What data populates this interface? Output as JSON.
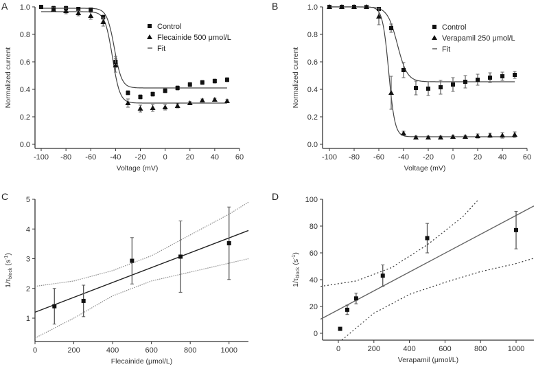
{
  "chart_data": [
    {
      "panel": "A",
      "type": "scatter",
      "xlabel": "Voltage (mV)",
      "ylabel": "Normalized current",
      "xlim": [
        -100,
        60
      ],
      "ylim": [
        0.0,
        1.0
      ],
      "xticks": [
        -100,
        -80,
        -60,
        -40,
        -20,
        0,
        20,
        40,
        60
      ],
      "yticks": [
        0.0,
        0.2,
        0.4,
        0.6,
        0.8,
        1.0
      ],
      "ytick_decimals": 1,
      "legend": {
        "placement": "top-right",
        "entries": [
          {
            "label": "Control",
            "marker": "square"
          },
          {
            "label": "Flecainide 500 μmol/L",
            "marker": "triangle"
          },
          {
            "label": "Fit",
            "marker": "line"
          }
        ]
      },
      "series": [
        {
          "name": "Control",
          "marker": "square",
          "x": [
            -100,
            -90,
            -80,
            -70,
            -60,
            -50,
            -40,
            -30,
            -20,
            -10,
            0,
            10,
            20,
            30,
            40,
            50
          ],
          "y": [
            1.0,
            0.99,
            0.99,
            0.985,
            0.98,
            0.925,
            0.6,
            0.375,
            0.345,
            0.365,
            0.39,
            0.41,
            0.435,
            0.45,
            0.46,
            0.47
          ],
          "err": [
            0.005,
            0.015,
            0.015,
            0.01,
            0.01,
            0.015,
            0.04,
            0.015,
            0.015,
            0.015,
            0.015,
            0.015,
            0.015,
            0.015,
            0.015,
            0.015
          ],
          "fit": {
            "model": "boltzmann",
            "top": 0.99,
            "bottom": 0.41,
            "v_half": -41,
            "k": 3
          }
        },
        {
          "name": "Flecainide 500 μmol/L",
          "marker": "triangle",
          "x": [
            -90,
            -80,
            -70,
            -60,
            -50,
            -40,
            -30,
            -20,
            -10,
            0,
            10,
            20,
            30,
            40,
            50
          ],
          "y": [
            0.98,
            0.97,
            0.955,
            0.935,
            0.89,
            0.575,
            0.3,
            0.26,
            0.265,
            0.27,
            0.28,
            0.3,
            0.32,
            0.325,
            0.315
          ],
          "err": [
            0.015,
            0.02,
            0.02,
            0.025,
            0.03,
            0.05,
            0.03,
            0.025,
            0.025,
            0.02,
            0.015,
            0.01,
            0.01,
            0.01,
            0.01
          ],
          "fit": {
            "model": "boltzmann",
            "top": 0.965,
            "bottom": 0.3,
            "v_half": -42.5,
            "k": 3
          }
        }
      ]
    },
    {
      "panel": "B",
      "type": "scatter",
      "xlabel": "Voltage (mV)",
      "ylabel": "Normalized current",
      "xlim": [
        -100,
        60
      ],
      "ylim": [
        0.0,
        1.0
      ],
      "xticks": [
        -100,
        -80,
        -60,
        -40,
        -20,
        0,
        20,
        40,
        60
      ],
      "yticks": [
        0.0,
        0.2,
        0.4,
        0.6,
        0.8,
        1.0
      ],
      "ytick_decimals": 1,
      "legend": {
        "placement": "top-right",
        "entries": [
          {
            "label": "Control",
            "marker": "square"
          },
          {
            "label": "Verapamil 250 μmol/L",
            "marker": "triangle"
          },
          {
            "label": "Fit",
            "marker": "line"
          }
        ]
      },
      "series": [
        {
          "name": "Control",
          "marker": "square",
          "x": [
            -100,
            -90,
            -80,
            -70,
            -60,
            -50,
            -40,
            -30,
            -20,
            -10,
            0,
            10,
            20,
            30,
            40,
            50
          ],
          "y": [
            1.0,
            1.0,
            1.0,
            1.0,
            0.985,
            0.845,
            0.54,
            0.41,
            0.405,
            0.415,
            0.435,
            0.455,
            0.47,
            0.485,
            0.495,
            0.505
          ],
          "err": [
            0.005,
            0.005,
            0.005,
            0.01,
            0.01,
            0.03,
            0.055,
            0.05,
            0.05,
            0.05,
            0.05,
            0.045,
            0.04,
            0.035,
            0.03,
            0.025
          ],
          "fit": {
            "model": "boltzmann",
            "top": 1.0,
            "bottom": 0.455,
            "v_half": -45,
            "k": 4
          }
        },
        {
          "name": "Verapamil 250 μmol/L",
          "marker": "triangle",
          "x": [
            -100,
            -90,
            -80,
            -70,
            -60,
            -50,
            -40,
            -30,
            -20,
            -10,
            0,
            10,
            20,
            30,
            40,
            50
          ],
          "y": [
            1.0,
            1.0,
            1.0,
            1.0,
            0.93,
            0.375,
            0.08,
            0.05,
            0.05,
            0.05,
            0.055,
            0.055,
            0.06,
            0.065,
            0.065,
            0.07
          ],
          "err": [
            0.005,
            0.005,
            0.005,
            0.01,
            0.06,
            0.12,
            0.015,
            0.01,
            0.01,
            0.01,
            0.01,
            0.01,
            0.015,
            0.015,
            0.02,
            0.02
          ],
          "fit": {
            "model": "boltzmann",
            "top": 1.0,
            "bottom": 0.055,
            "v_half": -52,
            "k": 2.5
          }
        }
      ]
    },
    {
      "panel": "C",
      "type": "scatter",
      "xlabel": "Flecainide (μmol/L)",
      "ylabel": {
        "main": "1/τ",
        "sub": "block",
        "unit_pre": " (s",
        "sup": "-1",
        "unit_post": ")"
      },
      "xlim": [
        0,
        1100
      ],
      "ylim": [
        0.3,
        5
      ],
      "xticks": [
        0,
        200,
        400,
        600,
        800,
        1000
      ],
      "yticks": [
        1,
        2,
        3,
        4,
        5
      ],
      "ytick_decimals": 0,
      "series": [
        {
          "marker": "square",
          "x": [
            100,
            250,
            500,
            750,
            1000
          ],
          "y": [
            1.4,
            1.58,
            2.93,
            3.07,
            3.52
          ],
          "err": [
            0.6,
            0.53,
            0.78,
            1.2,
            1.22
          ]
        }
      ],
      "fit_line": {
        "x": [
          0,
          1100
        ],
        "y": [
          1.2,
          3.95
        ]
      },
      "confidence_band": {
        "x": [
          0,
          200,
          400,
          600,
          800,
          1000,
          1100
        ],
        "upper": [
          2.07,
          2.25,
          2.6,
          3.1,
          3.8,
          4.5,
          4.9
        ],
        "lower": [
          0.33,
          1.0,
          1.75,
          2.25,
          2.55,
          2.85,
          3.0
        ]
      }
    },
    {
      "panel": "D",
      "type": "scatter",
      "xlabel": "Verapamil (μmol/L)",
      "ylabel": {
        "main": "1/τ",
        "sub": "block",
        "unit_pre": " (s",
        "sup": "-1",
        "unit_post": ")"
      },
      "xlim": [
        -100,
        1100
      ],
      "ylim": [
        -5,
        100
      ],
      "xticks": [
        0,
        200,
        400,
        600,
        800,
        1000
      ],
      "yticks": [
        0,
        20,
        40,
        60,
        80,
        100
      ],
      "ytick_decimals": 0,
      "series": [
        {
          "marker": "square",
          "x": [
            10,
            50,
            100,
            250,
            500,
            1000
          ],
          "y": [
            3.3,
            17.5,
            26,
            43,
            71,
            77
          ],
          "err": [
            0,
            3.5,
            4,
            8,
            11,
            14
          ]
        }
      ],
      "fit_line": {
        "x": [
          -100,
          1100
        ],
        "y": [
          10.5,
          95
        ]
      },
      "confidence_band": {
        "x_upper": [
          -100,
          100,
          300,
          500,
          700,
          790
        ],
        "upper": [
          35,
          39,
          49,
          66,
          87,
          100
        ],
        "x_lower": [
          20,
          200,
          400,
          600,
          800,
          1000,
          1100
        ],
        "lower": [
          -5,
          15,
          29,
          38,
          46,
          52,
          56
        ]
      }
    }
  ]
}
